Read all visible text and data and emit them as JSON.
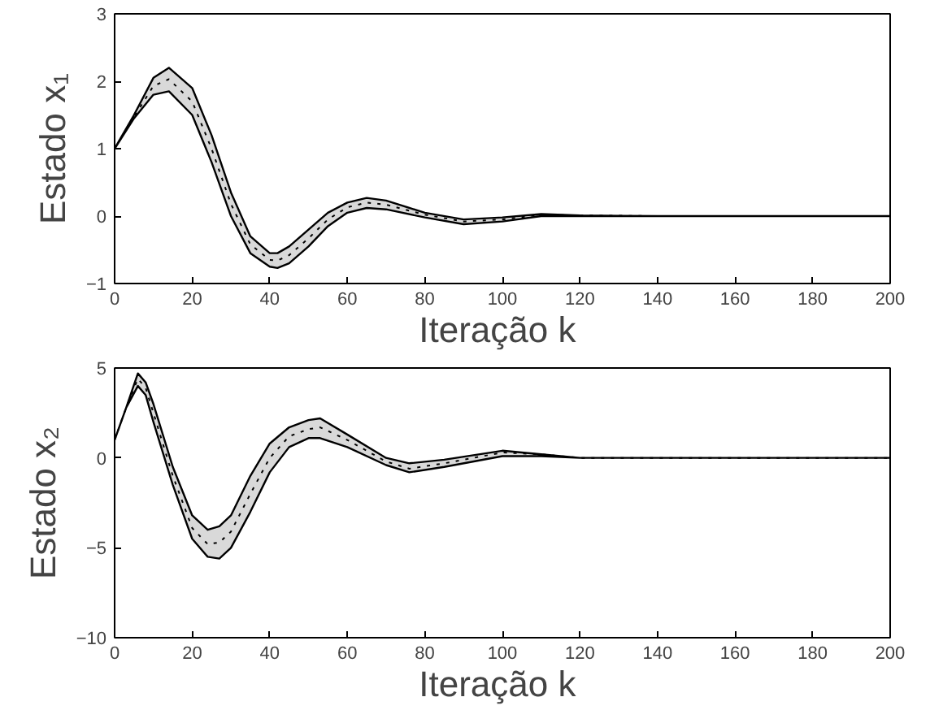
{
  "chart_data": [
    {
      "type": "line",
      "xlabel": "Iteração  k",
      "ylabel": "Estado x₁",
      "xlim": [
        0,
        200
      ],
      "ylim": [
        -1,
        3
      ],
      "xticks": [
        0,
        20,
        40,
        60,
        80,
        100,
        120,
        140,
        160,
        180,
        200
      ],
      "yticks": [
        -1,
        0,
        1,
        2,
        3
      ],
      "grid": false,
      "x": [
        0,
        5,
        10,
        14,
        20,
        25,
        30,
        35,
        40,
        42,
        45,
        50,
        55,
        60,
        65,
        70,
        80,
        90,
        100,
        110,
        120,
        140,
        160,
        200
      ],
      "series": [
        {
          "color": "#000000",
          "line_style": "dotted",
          "values": [
            1,
            1.47,
            1.93,
            2.03,
            1.7,
            1.0,
            0.18,
            -0.42,
            -0.65,
            -0.66,
            -0.58,
            -0.33,
            -0.05,
            0.13,
            0.2,
            0.17,
            0.02,
            -0.08,
            -0.05,
            0.02,
            0.01,
            0,
            0,
            0
          ],
          "lower": [
            1,
            1.45,
            1.8,
            1.85,
            1.5,
            0.8,
            0,
            -0.55,
            -0.75,
            -0.77,
            -0.7,
            -0.45,
            -0.15,
            0.05,
            0.12,
            0.1,
            -0.02,
            -0.12,
            -0.08,
            0,
            0,
            0,
            0,
            0
          ],
          "upper": [
            1,
            1.5,
            2.05,
            2.2,
            1.9,
            1.2,
            0.35,
            -0.3,
            -0.55,
            -0.55,
            -0.45,
            -0.2,
            0.05,
            0.2,
            0.27,
            0.23,
            0.05,
            -0.05,
            -0.02,
            0.03,
            0.01,
            0,
            0,
            0
          ]
        }
      ]
    },
    {
      "type": "line",
      "xlabel": "Iteração  k",
      "ylabel": "Estado x₂",
      "xlim": [
        0,
        200
      ],
      "ylim": [
        -10,
        5
      ],
      "xticks": [
        0,
        20,
        40,
        60,
        80,
        100,
        120,
        140,
        160,
        180,
        200
      ],
      "yticks": [
        -10,
        -5,
        0,
        5
      ],
      "grid": false,
      "x": [
        0,
        3,
        6,
        8,
        10,
        15,
        20,
        24,
        27,
        30,
        35,
        40,
        45,
        50,
        53,
        60,
        70,
        76,
        85,
        100,
        110,
        120,
        150,
        200
      ],
      "series": [
        {
          "color": "#000000",
          "line_style": "dotted",
          "values": [
            1,
            2.8,
            4.4,
            3.9,
            2.5,
            -1,
            -3.9,
            -4.8,
            -4.7,
            -4.1,
            -2,
            0,
            1.2,
            1.6,
            1.7,
            1,
            -0.2,
            -0.6,
            -0.3,
            0.3,
            0.2,
            0,
            0,
            0
          ],
          "lower": [
            1,
            2.8,
            4.0,
            3.5,
            2,
            -1.5,
            -4.5,
            -5.5,
            -5.6,
            -5,
            -3,
            -0.8,
            0.6,
            1.1,
            1.1,
            0.6,
            -0.4,
            -0.8,
            -0.5,
            0.1,
            0.1,
            0,
            0,
            0
          ],
          "upper": [
            1,
            2.8,
            4.7,
            4.2,
            3,
            -0.5,
            -3.2,
            -4,
            -3.8,
            -3.2,
            -1,
            0.8,
            1.7,
            2.1,
            2.2,
            1.3,
            0,
            -0.3,
            -0.1,
            0.4,
            0.2,
            0,
            0,
            0
          ]
        }
      ]
    }
  ]
}
